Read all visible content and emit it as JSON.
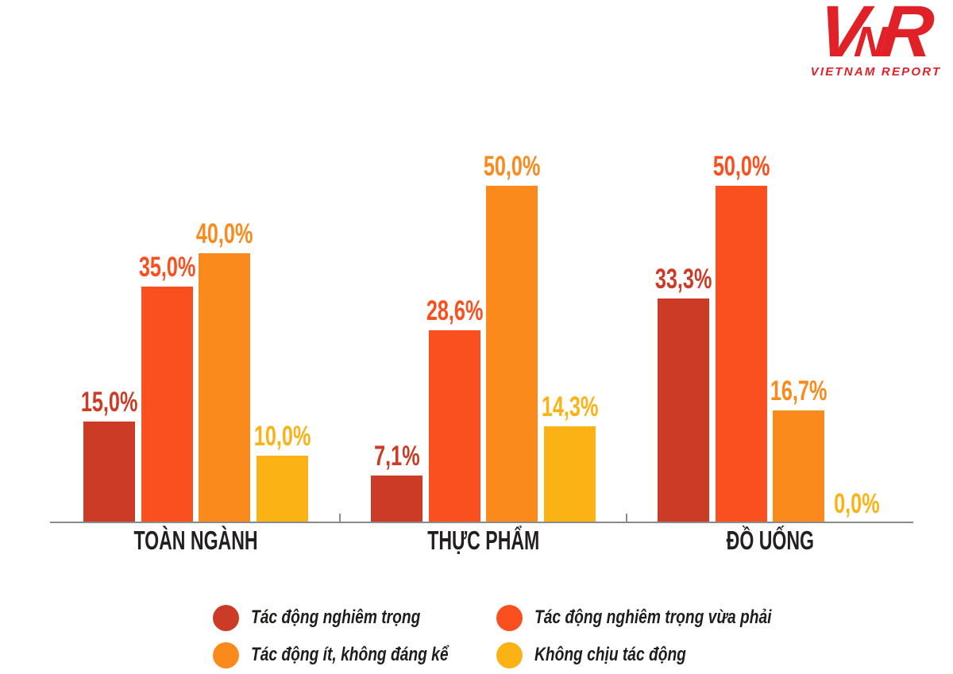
{
  "logo": {
    "mark_letters": [
      "V",
      "N",
      "R"
    ],
    "text": "VIETNAM REPORT",
    "color": "#e02128"
  },
  "chart_data": {
    "type": "bar",
    "title": "",
    "xlabel": "",
    "ylabel": "",
    "categories": [
      "TOÀN NGÀNH",
      "THỰC PHẨM",
      "ĐỒ UỐNG"
    ],
    "series": [
      {
        "name": "Tác động nghiêm trọng",
        "color": "#cc3b26",
        "values": [
          15.0,
          7.1,
          33.3
        ],
        "labels": [
          "15,0%",
          "7,1%",
          "33,3%"
        ]
      },
      {
        "name": "Tác động nghiêm trọng vừa phải",
        "color": "#fa4f1e",
        "values": [
          35.0,
          28.6,
          50.0
        ],
        "labels": [
          "35,0%",
          "28,6%",
          "50,0%"
        ]
      },
      {
        "name": "Tác động ít, không đáng kể",
        "color": "#f98a1b",
        "values": [
          40.0,
          50.0,
          16.7
        ],
        "labels": [
          "40,0%",
          "50,0%",
          "16,7%"
        ]
      },
      {
        "name": "Không chịu tác động",
        "color": "#fbb215",
        "values": [
          10.0,
          14.3,
          0.0
        ],
        "labels": [
          "10,0%",
          "14,3%",
          "0,0%"
        ]
      }
    ],
    "ylim": [
      0,
      50
    ],
    "grid": false,
    "axis_color": "#8a8a8a",
    "value_labels": true,
    "decimal_separator": ",",
    "value_suffix": "%",
    "legend_position": "bottom"
  },
  "legend": {
    "items": [
      {
        "label": "Tác động nghiêm trọng",
        "color": "#cc3b26"
      },
      {
        "label": "Tác động nghiêm trọng vừa phải",
        "color": "#fa4f1e"
      },
      {
        "label": "Tác động ít, không đáng kể",
        "color": "#f98a1b"
      },
      {
        "label": "Không chịu tác động",
        "color": "#fbb215"
      }
    ]
  }
}
